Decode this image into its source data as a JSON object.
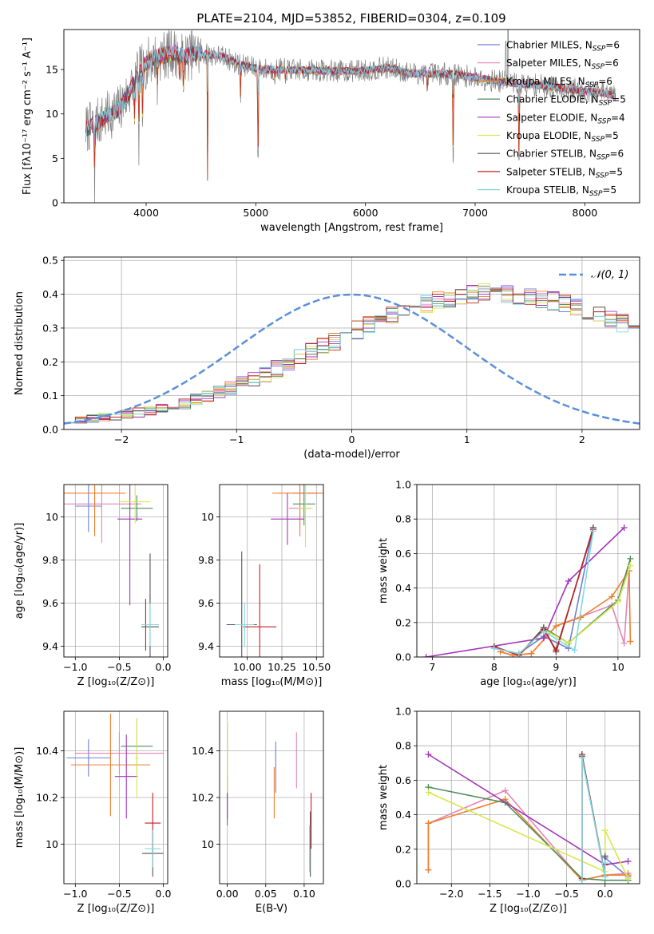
{
  "figure_title": "PLATE=2104, MJD=53852, FIBERID=0304, z=0.109",
  "series_colors": [
    "#6f7fd6",
    "#e385b8",
    "#ee7f2d",
    "#4f8f5a",
    "#a236b8",
    "#d6e84c",
    "#555555",
    "#c42020",
    "#82d8e0"
  ],
  "chart_data": [
    {
      "id": "spectrum",
      "type": "line",
      "title": "PLATE=2104, MJD=53852, FIBERID=0304, z=0.109",
      "xlabel": "wavelength [Angstrom, rest frame]",
      "ylabel": "Flux [fλ10⁻¹⁷ erg cm⁻² s⁻¹ A⁻¹]",
      "xlim": [
        3250,
        8500
      ],
      "ylim": [
        0,
        19.5
      ],
      "xticks": [
        4000,
        5000,
        6000,
        7000,
        8000
      ],
      "yticks": [
        0,
        5,
        10,
        15
      ],
      "grid": false,
      "legend_position": "upper right",
      "legend": [
        {
          "name": "Chabrier MILES",
          "nssp": "6"
        },
        {
          "name": "Salpeter MILES",
          "nssp": "6"
        },
        {
          "name": "Kroupa MILES",
          "nssp": "6"
        },
        {
          "name": "Chabrier ELODIE",
          "nssp": "5"
        },
        {
          "name": "Salpeter ELODIE",
          "nssp": "4"
        },
        {
          "name": "Kroupa ELODIE",
          "nssp": "5"
        },
        {
          "name": "Chabrier STELIB",
          "nssp": "6"
        },
        {
          "name": "Salpeter STELIB",
          "nssp": "5"
        },
        {
          "name": "Kroupa STELIB",
          "nssp": "5"
        }
      ],
      "continuum": {
        "x": [
          3450,
          3550,
          3650,
          3750,
          3850,
          3950,
          4050,
          4150,
          4250,
          4350,
          4450,
          4550,
          4650,
          4750,
          4850,
          4950,
          5050,
          5200,
          5400,
          5600,
          5800,
          6000,
          6200,
          6400,
          6600,
          6800,
          7000,
          7200,
          7400,
          7600,
          7800,
          8000,
          8200,
          8280
        ],
        "y": [
          8.3,
          9.0,
          9.8,
          10.5,
          12.5,
          15.0,
          16.2,
          16.6,
          16.9,
          16.4,
          16.8,
          16.7,
          16.6,
          16.2,
          15.6,
          15.3,
          15.0,
          15.0,
          14.9,
          14.9,
          14.8,
          14.9,
          15.2,
          14.6,
          14.5,
          14.5,
          14.1,
          13.7,
          13.4,
          13.2,
          12.9,
          12.6,
          12.3,
          12.0
        ]
      },
      "absorption_dips": [
        {
          "x": 3530,
          "y": 0
        },
        {
          "x": 3895,
          "y": 7.5
        },
        {
          "x": 3934,
          "y": 4.2
        },
        {
          "x": 3968,
          "y": 6.0
        },
        {
          "x": 4102,
          "y": 11.0
        },
        {
          "x": 4304,
          "y": 12.5
        },
        {
          "x": 4340,
          "y": 10.0
        },
        {
          "x": 4560,
          "y": 0
        },
        {
          "x": 4861,
          "y": 10.5
        },
        {
          "x": 5020,
          "y": 0
        },
        {
          "x": 5175,
          "y": 12.8
        },
        {
          "x": 5270,
          "y": 13.4
        },
        {
          "x": 6563,
          "y": 12.0
        },
        {
          "x": 6800,
          "y": 0
        },
        {
          "x": 7400,
          "y": 0
        }
      ],
      "spikes": [
        {
          "x": 7300,
          "y": 19.5
        },
        {
          "x": 7280,
          "y": 18.2
        }
      ]
    },
    {
      "id": "residuals",
      "type": "histogram",
      "xlabel": "(data-model)/error",
      "ylabel": "Normed distribution",
      "xlim": [
        -2.5,
        2.5
      ],
      "ylim": [
        0,
        0.51
      ],
      "xticks": [
        -2,
        -1,
        0,
        1,
        2
      ],
      "yticks": [
        0.0,
        0.1,
        0.2,
        0.3,
        0.4,
        0.5
      ],
      "grid": true,
      "legend_position": "upper right",
      "gaussian_label": "𝒩(0, 1)",
      "bin_width": 0.1,
      "bin_start": -2.5,
      "base_values": [
        0.025,
        0.028,
        0.032,
        0.036,
        0.04,
        0.045,
        0.05,
        0.056,
        0.062,
        0.07,
        0.078,
        0.088,
        0.098,
        0.11,
        0.122,
        0.135,
        0.15,
        0.165,
        0.18,
        0.196,
        0.212,
        0.228,
        0.245,
        0.262,
        0.278,
        0.295,
        0.31,
        0.325,
        0.338,
        0.352,
        0.362,
        0.372,
        0.38,
        0.388,
        0.395,
        0.4,
        0.405,
        0.41,
        0.402,
        0.396,
        0.392,
        0.386,
        0.38,
        0.372,
        0.362,
        0.352,
        0.34,
        0.328,
        0.314,
        0.3,
        0.286,
        0.27,
        0.254,
        0.238,
        0.222,
        0.206,
        0.19,
        0.174,
        0.158,
        0.143,
        0.129,
        0.116,
        0.103,
        0.092,
        0.082,
        0.073,
        0.065,
        0.058,
        0.052,
        0.047,
        0.043,
        0.04,
        0.038,
        0.036,
        0.035,
        0.034,
        0.033,
        0.032,
        0.031,
        0.03
      ]
    },
    {
      "id": "age-vs-z",
      "type": "errorbar",
      "xlabel": "Z [log₁₀(Z/Z⊙)]",
      "ylabel": "age  [log₁₀(age/yr)]",
      "xlim": [
        -1.13,
        0.05
      ],
      "ylim": [
        9.35,
        10.15
      ],
      "xticks": [
        -1.0,
        -0.5,
        0.0
      ],
      "xticklabels": [
        "−1.0",
        "−0.5",
        "0.0"
      ],
      "yticks": [
        9.4,
        9.6,
        9.8,
        10.0
      ],
      "grid": true,
      "points": [
        {
          "x": -0.85,
          "y": 10.05,
          "xerr": 0.15,
          "yerr": 0.12
        },
        {
          "x": -0.7,
          "y": 10.06,
          "xerr": 0.45,
          "yerr": 0.18
        },
        {
          "x": -0.78,
          "y": 10.11,
          "xerr": 0.35,
          "yerr": 0.2
        },
        {
          "x": -0.3,
          "y": 10.04,
          "xerr": 0.18,
          "yerr": 0.06
        },
        {
          "x": -0.38,
          "y": 9.99,
          "xerr": 0.14,
          "yerr": 0.4
        },
        {
          "x": -0.32,
          "y": 10.07,
          "xerr": 0.17,
          "yerr": 0.1
        },
        {
          "x": -0.15,
          "y": 9.49,
          "xerr": 0.1,
          "yerr": 0.34
        },
        {
          "x": -0.2,
          "y": 9.5,
          "xerr": 0.02,
          "yerr": 0.12
        },
        {
          "x": -0.15,
          "y": 9.5,
          "xerr": 0.1,
          "yerr": 0.1
        }
      ]
    },
    {
      "id": "age-vs-mass",
      "type": "errorbar",
      "xlabel": "mass [log₁₀(M/M⊙)]",
      "ylabel": "",
      "xlim": [
        9.8,
        10.55
      ],
      "ylim": [
        9.35,
        10.15
      ],
      "xticks": [
        10.0,
        10.25,
        10.5
      ],
      "xticklabels": [
        "10.00",
        "10.25",
        "10.50"
      ],
      "yticks": [
        9.4,
        9.6,
        9.8,
        10.0
      ],
      "grid": true,
      "points": [
        {
          "x": 10.42,
          "y": 10.11,
          "xerr": 0.09,
          "yerr": 0.05
        },
        {
          "x": 10.38,
          "y": 10.04,
          "xerr": 0.08,
          "yerr": 0.09
        },
        {
          "x": 10.38,
          "y": 10.11,
          "xerr": 0.2,
          "yerr": 0.2
        },
        {
          "x": 10.41,
          "y": 10.06,
          "xerr": 0.08,
          "yerr": 0.1
        },
        {
          "x": 10.29,
          "y": 9.99,
          "xerr": 0.12,
          "yerr": 0.12
        },
        {
          "x": 10.42,
          "y": 10.04,
          "xerr": 0.05,
          "yerr": 0.18
        },
        {
          "x": 9.96,
          "y": 9.5,
          "xerr": 0.11,
          "yerr": 0.34
        },
        {
          "x": 10.09,
          "y": 9.49,
          "xerr": 0.12,
          "yerr": 0.29
        },
        {
          "x": 9.98,
          "y": 9.5,
          "xerr": 0.07,
          "yerr": 0.1
        }
      ]
    },
    {
      "id": "weight-vs-age",
      "type": "line",
      "xlabel": "age  [log₁₀(age/yr)]",
      "ylabel": "mass weight",
      "xlim": [
        6.75,
        10.35
      ],
      "ylim": [
        0,
        1.0
      ],
      "xticks": [
        7,
        8,
        9,
        10
      ],
      "yticks": [
        0.0,
        0.2,
        0.4,
        0.6,
        0.8,
        1.0
      ],
      "grid": true,
      "series": [
        {
          "x": [
            8.0,
            8.4,
            8.8,
            9.2,
            9.6
          ],
          "y": [
            0.05,
            0.02,
            0.12,
            0.05,
            0.75
          ]
        },
        {
          "x": [
            8.1,
            8.3,
            8.6,
            9.0,
            9.9,
            10.1,
            10.18
          ],
          "y": [
            0.03,
            0.01,
            0.02,
            0.18,
            0.3,
            0.08,
            0.5
          ]
        },
        {
          "x": [
            8.1,
            8.3,
            8.6,
            9.0,
            9.4,
            9.9,
            10.18,
            10.2
          ],
          "y": [
            0.03,
            0.01,
            0.02,
            0.18,
            0.23,
            0.35,
            0.5,
            0.09
          ]
        },
        {
          "x": [
            8.4,
            8.8,
            9.2,
            10.0,
            10.2
          ],
          "y": [
            0.01,
            0.17,
            0.08,
            0.33,
            0.57
          ]
        },
        {
          "x": [
            6.9,
            8.8,
            9.2,
            10.1
          ],
          "y": [
            0.0,
            0.11,
            0.44,
            0.75
          ]
        },
        {
          "x": [
            8.4,
            8.8,
            9.2,
            10.0,
            10.2
          ],
          "y": [
            0.01,
            0.16,
            0.08,
            0.32,
            0.53
          ]
        },
        {
          "x": [
            8.0,
            8.4,
            8.8,
            9.0,
            9.6
          ],
          "y": [
            0.06,
            0.01,
            0.17,
            0.03,
            0.75
          ]
        },
        {
          "x": [
            8.0,
            8.4,
            8.8,
            9.0,
            9.6
          ],
          "y": [
            0.06,
            0.01,
            0.16,
            0.04,
            0.74
          ]
        },
        {
          "x": [
            8.0,
            8.4,
            8.8,
            9.3,
            9.6
          ],
          "y": [
            0.05,
            0.02,
            0.15,
            0.04,
            0.73
          ]
        }
      ]
    },
    {
      "id": "mass-vs-z",
      "type": "errorbar",
      "xlabel": "Z [log₁₀(Z/Z⊙)]",
      "ylabel": "mass [log₁₀(M/M⊙)]",
      "xlim": [
        -1.13,
        0.05
      ],
      "ylim": [
        9.83,
        10.57
      ],
      "xticks": [
        -1.0,
        -0.5,
        0.0
      ],
      "xticklabels": [
        "−1.0",
        "−0.5",
        "0.0"
      ],
      "yticks": [
        10.0,
        10.2,
        10.4
      ],
      "grid": true,
      "points": [
        {
          "x": -0.85,
          "y": 10.37,
          "xerr": 0.25,
          "yerr": 0.08
        },
        {
          "x": -0.5,
          "y": 10.39,
          "xerr": 0.5,
          "yerr": 0.09
        },
        {
          "x": -0.6,
          "y": 10.34,
          "xerr": 0.45,
          "yerr": 0.22
        },
        {
          "x": -0.3,
          "y": 10.42,
          "xerr": 0.18,
          "yerr": 0.12
        },
        {
          "x": -0.42,
          "y": 10.29,
          "xerr": 0.13,
          "yerr": 0.18
        },
        {
          "x": -0.3,
          "y": 10.37,
          "xerr": 0.02,
          "yerr": 0.17
        },
        {
          "x": -0.12,
          "y": 9.96,
          "xerr": 0.12,
          "yerr": 0.1
        },
        {
          "x": -0.12,
          "y": 10.09,
          "xerr": 0.09,
          "yerr": 0.13
        },
        {
          "x": -0.12,
          "y": 9.98,
          "xerr": 0.09,
          "yerr": 0.08
        }
      ]
    },
    {
      "id": "mass-vs-ebv",
      "type": "errorbar",
      "xlabel": "E(B-V)",
      "ylabel": "",
      "xlim": [
        -0.01,
        0.125
      ],
      "ylim": [
        9.83,
        10.57
      ],
      "xticks": [
        0.0,
        0.05,
        0.1
      ],
      "xticklabels": [
        "0.00",
        "0.05",
        "0.10"
      ],
      "yticks": [
        10.0,
        10.2,
        10.4
      ],
      "grid": true,
      "points": [
        {
          "x": 0.063,
          "y": 10.33,
          "xerr": 0.0,
          "yerr": 0.11
        },
        {
          "x": 0.09,
          "y": 10.36,
          "xerr": 0.0,
          "yerr": 0.12
        },
        {
          "x": 0.061,
          "y": 10.22,
          "xerr": 0.0,
          "yerr": 0.11
        },
        {
          "x": 0.0,
          "y": 10.3,
          "xerr": 0.0,
          "yerr": 0.22
        },
        {
          "x": 0.0,
          "y": 10.2,
          "xerr": 0.0,
          "yerr": 0.09
        },
        {
          "x": 0.0,
          "y": 10.38,
          "xerr": 0.0,
          "yerr": 0.16
        },
        {
          "x": 0.108,
          "y": 10.0,
          "xerr": 0.0,
          "yerr": 0.14
        },
        {
          "x": 0.109,
          "y": 10.1,
          "xerr": 0.0,
          "yerr": 0.12
        },
        {
          "x": 0.107,
          "y": 9.98,
          "xerr": 0.0,
          "yerr": 0.1
        }
      ]
    },
    {
      "id": "weight-vs-z",
      "type": "line",
      "xlabel": "Z [log₁₀(Z/Z⊙)]",
      "ylabel": "mass weight",
      "xlim": [
        -2.45,
        0.45
      ],
      "ylim": [
        0,
        1.0
      ],
      "xticks": [
        -2.0,
        -1.5,
        -1.0,
        -0.5,
        0.0
      ],
      "xticklabels": [
        "−2.0",
        "−1.5",
        "−1.0",
        "−0.5",
        "0.0"
      ],
      "yticks": [
        0.0,
        0.2,
        0.4,
        0.6,
        0.8,
        1.0
      ],
      "grid": true,
      "series": [
        {
          "x": [
            -0.3,
            -0.3,
            0.0,
            0.0,
            0.3
          ],
          "y": [
            0.02,
            0.74,
            0.05,
            0.15,
            0.04
          ]
        },
        {
          "x": [
            -2.3,
            -2.3,
            -1.3,
            -0.3,
            0.0,
            0.3
          ],
          "y": [
            0.08,
            0.35,
            0.54,
            0.02,
            0.05,
            0.06
          ]
        },
        {
          "x": [
            -2.3,
            -2.3,
            -1.3,
            -0.3,
            0.0,
            0.3
          ],
          "y": [
            0.08,
            0.35,
            0.49,
            0.02,
            0.05,
            0.05
          ]
        },
        {
          "x": [
            -2.3,
            -1.3,
            -0.3,
            0.0,
            0.3
          ],
          "y": [
            0.56,
            0.47,
            0.03,
            0.02,
            0.02
          ]
        },
        {
          "x": [
            -2.3,
            0.0,
            0.3
          ],
          "y": [
            0.75,
            0.11,
            0.13
          ]
        },
        {
          "x": [
            -2.3,
            0.0,
            0.0,
            0.3
          ],
          "y": [
            0.53,
            0.07,
            0.31,
            0.03
          ]
        },
        {
          "x": [
            -0.3,
            -0.3,
            0.0,
            0.0
          ],
          "y": [
            0.03,
            0.75,
            0.04,
            0.16
          ]
        },
        {
          "x": [
            -0.3,
            -0.3,
            0.0,
            0.0
          ],
          "y": [
            0.03,
            0.74,
            0.04,
            0.11
          ]
        },
        {
          "x": [
            -0.3,
            -0.3,
            0.0,
            0.0
          ],
          "y": [
            0.02,
            0.73,
            0.04,
            0.12
          ]
        }
      ]
    }
  ]
}
